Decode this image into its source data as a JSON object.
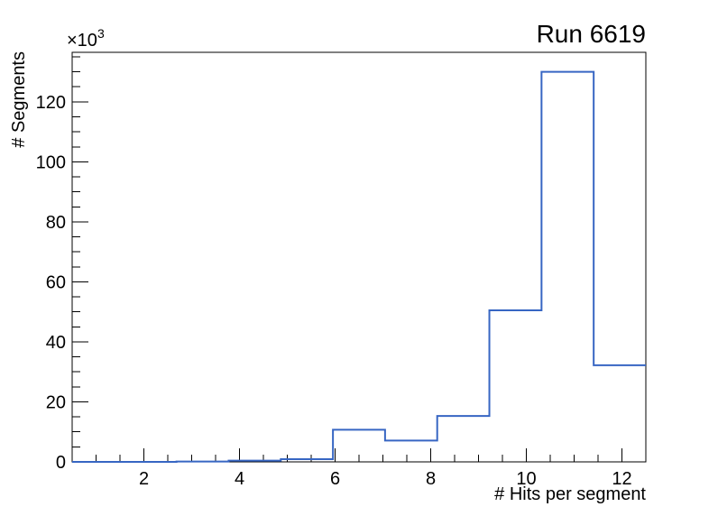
{
  "chart_data": {
    "type": "histogram-step",
    "title": "Run 6619",
    "xlabel": "# Hits per segment",
    "ylabel": "# Segments",
    "y_axis_multiplier": {
      "base": "×10",
      "exp": "3"
    },
    "bin_edges": [
      0.5,
      1.591,
      2.682,
      3.773,
      4.864,
      5.955,
      7.045,
      8.136,
      9.227,
      10.318,
      11.409,
      12.5
    ],
    "values": [
      0,
      0,
      100,
      400,
      900,
      10700,
      7100,
      15300,
      50500,
      130000,
      32200
    ],
    "xlim": [
      0.5,
      12.5
    ],
    "ylim": [
      0,
      136500
    ],
    "x_major_ticks": [
      2,
      4,
      6,
      8,
      10,
      12
    ],
    "x_minor_step": 0.5,
    "y_major_step": 20000,
    "y_minor_step": 5000,
    "y_label_divisor": 1000,
    "grid": false,
    "legend_position": "none",
    "line_color": "#3766c3",
    "frame_color": "#000000",
    "text_color": "#000000",
    "background_color": "#ffffff"
  }
}
